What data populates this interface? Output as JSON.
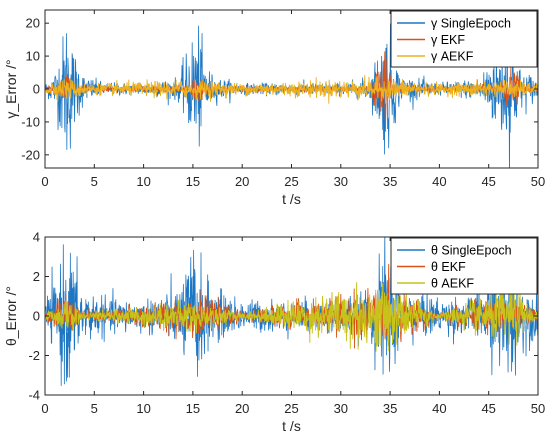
{
  "chart_data": [
    {
      "type": "line",
      "panel": "top",
      "xlabel": "t /s",
      "ylabel": "γ_Error /°",
      "xlim": [
        0,
        50
      ],
      "ylim": [
        -24,
        24
      ],
      "xticks": [
        "0",
        "5",
        "10",
        "15",
        "20",
        "25",
        "30",
        "35",
        "40",
        "45",
        "50"
      ],
      "yticks": [
        "20",
        "10",
        "0",
        "-10",
        "-20"
      ],
      "ytick_values": [
        20,
        10,
        0,
        -10,
        -20
      ],
      "legend_position": "top-right",
      "grid": false,
      "series": [
        {
          "name": "γ SingleEpoch",
          "color": "#1f77c4",
          "envelope_t": [
            0,
            1,
            1.8,
            2.3,
            2.8,
            4,
            6,
            10,
            13.5,
            14.8,
            15.3,
            16,
            17,
            20,
            25,
            30,
            33,
            34.2,
            34.8,
            36,
            40,
            44,
            46.5,
            47.3,
            48,
            50
          ],
          "envelope_amp": [
            1.5,
            5,
            14,
            22,
            12,
            3.5,
            1.8,
            1.5,
            3,
            12,
            21,
            10,
            3.5,
            1.5,
            1.6,
            1.6,
            3,
            15,
            18,
            3.5,
            1.6,
            3,
            15,
            20,
            6,
            3
          ]
        },
        {
          "name": "γ EKF",
          "color": "#d95319",
          "envelope_t": [
            0,
            1.5,
            2.3,
            3.2,
            5,
            14,
            15.2,
            16.5,
            20,
            33,
            34.4,
            35.5,
            40,
            46,
            47.3,
            48.5,
            50
          ],
          "envelope_amp": [
            0.6,
            1.5,
            6,
            1.2,
            0.6,
            0.8,
            4,
            1,
            0.6,
            0.8,
            11,
            1.2,
            0.6,
            1,
            6,
            1,
            0.8
          ]
        },
        {
          "name": "γ AEKF",
          "color": "#edb120",
          "envelope_t": [
            0,
            2.3,
            5,
            15.2,
            20,
            34.4,
            40,
            47.3,
            50
          ],
          "envelope_amp": [
            1.5,
            3,
            1.5,
            2.5,
            1.5,
            3,
            1.5,
            2.5,
            1.5
          ]
        }
      ]
    },
    {
      "type": "line",
      "panel": "bottom",
      "xlabel": "t /s",
      "ylabel": "θ_Error /°",
      "xlim": [
        0,
        50
      ],
      "ylim": [
        -4,
        4
      ],
      "xticks": [
        "0",
        "5",
        "10",
        "15",
        "20",
        "25",
        "30",
        "35",
        "40",
        "45",
        "50"
      ],
      "yticks": [
        "4",
        "2",
        "0",
        "-2",
        "-4"
      ],
      "ytick_values": [
        4,
        2,
        0,
        -2,
        -4
      ],
      "legend_position": "top-right",
      "grid": false,
      "series": [
        {
          "name": "θ SingleEpoch",
          "color": "#1f77c4",
          "envelope_t": [
            0,
            1,
            1.8,
            2.4,
            3,
            4,
            6,
            10,
            13.5,
            14.8,
            15.3,
            16,
            17,
            20,
            25,
            30,
            33,
            34.2,
            34.8,
            36,
            40,
            44,
            46.5,
            47.3,
            48,
            50
          ],
          "envelope_amp": [
            0.7,
            1.5,
            2.8,
            3.6,
            2.2,
            1.2,
            0.8,
            0.7,
            1.2,
            2.8,
            3.8,
            2,
            1.2,
            0.7,
            0.7,
            0.8,
            1,
            2.8,
            3.6,
            1.3,
            0.8,
            0.9,
            2.8,
            3.4,
            1.6,
            1
          ]
        },
        {
          "name": "θ EKF",
          "color": "#d95319",
          "envelope_t": [
            0,
            2.3,
            4,
            15.2,
            20,
            34.4,
            40,
            47.3,
            50
          ],
          "envelope_amp": [
            0.2,
            0.9,
            0.2,
            0.9,
            0.2,
            1.2,
            0.2,
            1,
            0.2
          ]
        },
        {
          "name": "θ AEKF",
          "color": "#c7c31a",
          "envelope_t": [
            0,
            2.3,
            4,
            15.2,
            20,
            34.4,
            40,
            47.3,
            50
          ],
          "envelope_amp": [
            0.15,
            0.8,
            0.15,
            0.7,
            0.15,
            1.6,
            0.15,
            1.4,
            0.15
          ]
        }
      ]
    }
  ]
}
